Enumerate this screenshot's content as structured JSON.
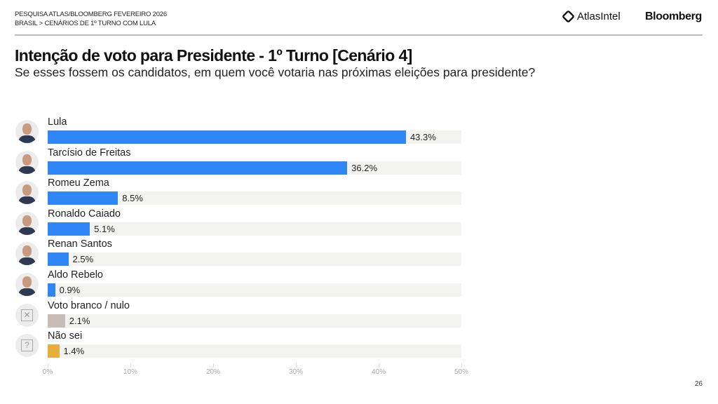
{
  "header": {
    "line1": "PESQUISA ATLAS/BLOOMBERG FEVEREIRO 2026",
    "line2": "BRASIL > CENÁRIOS DE 1º TURNO COM LULA",
    "logo_atlas": "AtlasIntel",
    "logo_bloomberg": "Bloomberg"
  },
  "page_number": "26",
  "chart_data": {
    "type": "bar",
    "orientation": "horizontal",
    "title": "Intenção de voto para Presidente - 1º Turno [Cenário 4]",
    "subtitle": "Se esses fossem os candidatos, em quem você votaria nas próximas eleições para presidente?",
    "categories": [
      "Lula",
      "Tarcísio de Freitas",
      "Romeu Zema",
      "Ronaldo Caiado",
      "Renan Santos",
      "Aldo Rebelo",
      "Voto branco / nulo",
      "Não sei"
    ],
    "values": [
      43.3,
      36.2,
      8.5,
      5.1,
      2.5,
      0.9,
      2.1,
      1.4
    ],
    "labels": [
      "43.3%",
      "36.2%",
      "8.5%",
      "5.1%",
      "2.5%",
      "0.9%",
      "2.1%",
      "1.4%"
    ],
    "colors": [
      "#2f86f6",
      "#2f86f6",
      "#2f86f6",
      "#2f86f6",
      "#2f86f6",
      "#2f86f6",
      "#c9bcb6",
      "#e9ad3c"
    ],
    "icons": [
      "photo",
      "photo",
      "photo",
      "photo",
      "photo",
      "photo",
      "x-box-icon",
      "question-box-icon"
    ],
    "xlim": [
      0,
      50
    ],
    "xticks": [
      "0%",
      "10%",
      "20%",
      "30%",
      "40%",
      "50%"
    ],
    "grid": false
  }
}
